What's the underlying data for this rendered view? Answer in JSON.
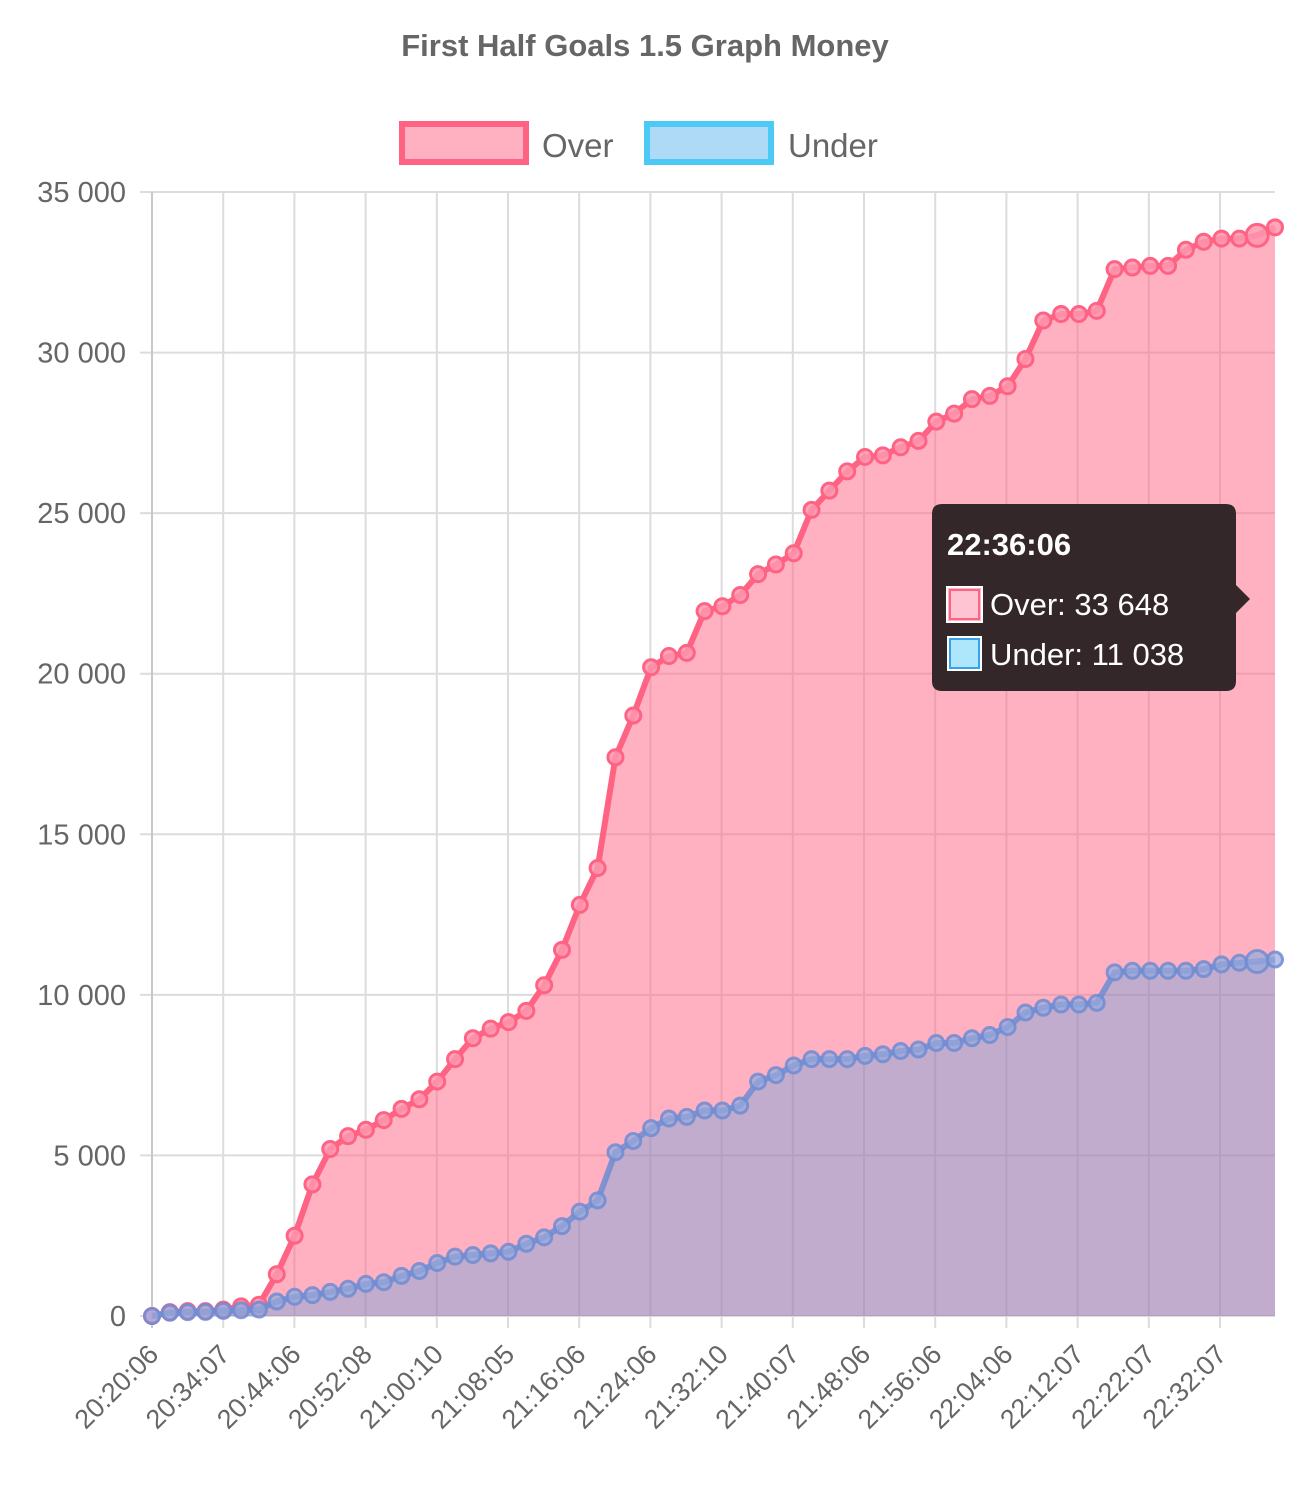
{
  "chart_data": {
    "type": "area",
    "title": "First Half Goals 1.5 Graph Money",
    "legend_position": "top",
    "grid": true,
    "ylim": [
      0,
      35000
    ],
    "y_ticks": [
      "0",
      "5 000",
      "10 000",
      "15 000",
      "20 000",
      "25 000",
      "30 000",
      "35 000"
    ],
    "x_tick_labels": [
      "20:20:06",
      "20:34:07",
      "20:44:06",
      "20:52:08",
      "21:00:10",
      "21:08:05",
      "21:16:06",
      "21:24:06",
      "21:32:10",
      "21:40:07",
      "21:48:06",
      "21:56:06",
      "22:04:06",
      "22:12:07",
      "22:22:07",
      "22:32:07"
    ],
    "series": [
      {
        "name": "Over",
        "color": "#ff6384",
        "values": [
          0,
          120,
          150,
          150,
          200,
          300,
          350,
          1300,
          2500,
          4100,
          5200,
          5600,
          5800,
          6100,
          6450,
          6750,
          7300,
          8000,
          8650,
          8950,
          9150,
          9500,
          10300,
          11400,
          12800,
          13950,
          17400,
          18700,
          20200,
          20550,
          20650,
          21950,
          22100,
          22450,
          23100,
          23400,
          23750,
          25100,
          25700,
          26300,
          26750,
          26800,
          27050,
          27250,
          27850,
          28100,
          28550,
          28650,
          28950,
          29800,
          31000,
          31200,
          31200,
          31300,
          32600,
          32650,
          32700,
          32700,
          33200,
          33450,
          33550,
          33550,
          33648,
          33900
        ]
      },
      {
        "name": "Under",
        "color": "#36a2eb",
        "values": [
          0,
          100,
          120,
          130,
          160,
          180,
          200,
          450,
          600,
          650,
          750,
          850,
          1000,
          1050,
          1250,
          1400,
          1650,
          1850,
          1900,
          1950,
          2000,
          2250,
          2450,
          2800,
          3250,
          3600,
          5100,
          5450,
          5850,
          6150,
          6200,
          6400,
          6400,
          6550,
          7300,
          7500,
          7800,
          8000,
          8000,
          8000,
          8100,
          8150,
          8250,
          8300,
          8500,
          8500,
          8650,
          8750,
          9000,
          9450,
          9600,
          9700,
          9700,
          9750,
          10700,
          10750,
          10750,
          10750,
          10750,
          10800,
          10950,
          11000,
          11038,
          11100
        ]
      }
    ]
  },
  "tooltip": {
    "title": "22:36:06",
    "lines": [
      "Over: 33 648",
      "Under: 11 038"
    ]
  }
}
